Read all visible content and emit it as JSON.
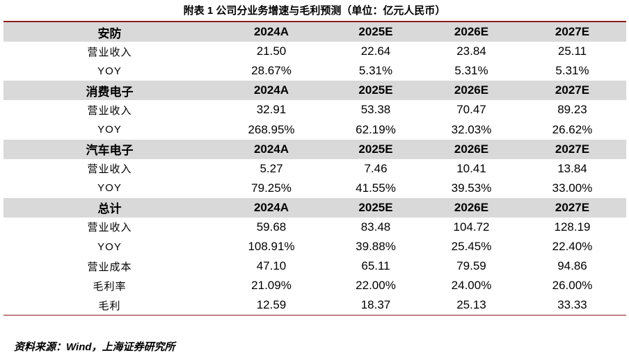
{
  "header": {
    "title": "附表 1 公司分业务增速与毛利预测（单位：亿元人民币）"
  },
  "table": {
    "sections": [
      {
        "header": [
          "安防",
          "2024A",
          "2025E",
          "2026E",
          "2027E"
        ],
        "rows": [
          [
            "营业收入",
            "21.50",
            "22.64",
            "23.84",
            "25.11"
          ],
          [
            "YOY",
            "28.67%",
            "5.31%",
            "5.31%",
            "5.31%"
          ]
        ]
      },
      {
        "header": [
          "消费电子",
          "2024A",
          "2025E",
          "2026E",
          "2027E"
        ],
        "rows": [
          [
            "营业收入",
            "32.91",
            "53.38",
            "70.47",
            "89.23"
          ],
          [
            "YOY",
            "268.95%",
            "62.19%",
            "32.03%",
            "26.62%"
          ]
        ]
      },
      {
        "header": [
          "汽车电子",
          "2024A",
          "2025E",
          "2026E",
          "2027E"
        ],
        "rows": [
          [
            "营业收入",
            "5.27",
            "7.46",
            "10.41",
            "13.84"
          ],
          [
            "YOY",
            "79.25%",
            "41.55%",
            "39.53%",
            "33.00%"
          ]
        ]
      },
      {
        "header": [
          "总计",
          "2024A",
          "2025E",
          "2026E",
          "2027E"
        ],
        "rows": [
          [
            "营业收入",
            "59.68",
            "83.48",
            "104.72",
            "128.19"
          ],
          [
            "YOY",
            "108.91%",
            "39.88%",
            "25.45%",
            "22.40%"
          ],
          [
            "营业成本",
            "47.10",
            "65.11",
            "79.59",
            "94.86"
          ],
          [
            "毛利率",
            "21.09%",
            "22.00%",
            "24.00%",
            "26.00%"
          ],
          [
            "毛利",
            "12.59",
            "18.37",
            "25.13",
            "33.33"
          ]
        ]
      }
    ]
  },
  "footer": {
    "source": "资料来源：Wind，上海证券研究所"
  }
}
